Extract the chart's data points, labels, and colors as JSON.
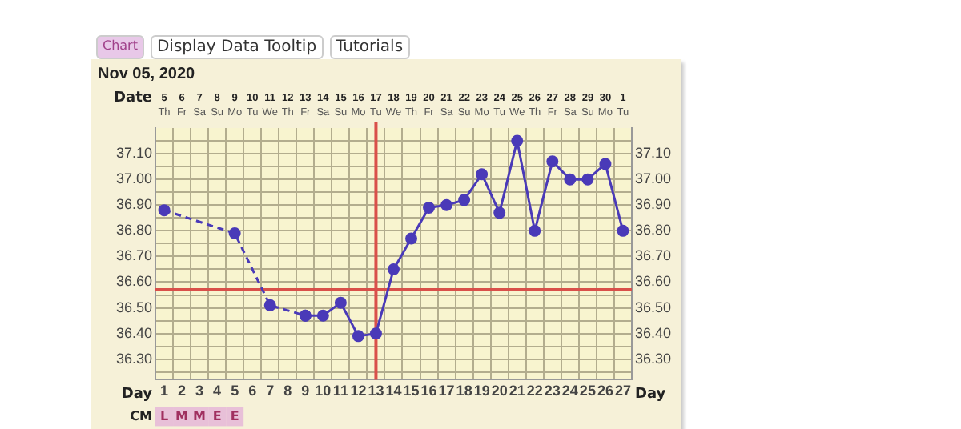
{
  "chart_data": {
    "type": "line",
    "title": "Nov 05, 2020",
    "xlabel": "Day",
    "x2label": "Date",
    "xlim": [
      0.5,
      27.5
    ],
    "ylim": [
      36.22,
      37.2
    ],
    "y2lim": [
      36.22,
      37.2
    ],
    "xticks": [
      {
        "value": 0.5,
        "label": null
      },
      1,
      {
        "value": 1.5,
        "label": null
      },
      2,
      {
        "value": 2.5,
        "label": null
      },
      3,
      {
        "value": 3.5,
        "label": null
      },
      4,
      {
        "value": 4.5,
        "label": null
      },
      5,
      {
        "value": 5.5,
        "label": null
      },
      6,
      {
        "value": 6.5,
        "label": null
      },
      7,
      {
        "value": 7.5,
        "label": null
      },
      8,
      {
        "value": 8.5,
        "label": null
      },
      9,
      {
        "value": 9.5,
        "label": null
      },
      10,
      {
        "value": 10.5,
        "label": null
      },
      11,
      {
        "value": 11.5,
        "label": null
      },
      12,
      {
        "value": 12.5,
        "label": null
      },
      13,
      {
        "value": 13.5,
        "label": null
      },
      14,
      {
        "value": 14.5,
        "label": null
      },
      15,
      {
        "value": 15.5,
        "label": null
      },
      16,
      {
        "value": 16.5,
        "label": null
      },
      17,
      {
        "value": 17.5,
        "label": null
      },
      18,
      {
        "value": 18.5,
        "label": null
      },
      19,
      {
        "value": 19.5,
        "label": null
      },
      20,
      {
        "value": 20.5,
        "label": null
      },
      21,
      {
        "value": 21.5,
        "label": null
      },
      22,
      {
        "value": 22.5,
        "label": null
      },
      23,
      {
        "value": 23.5,
        "label": null
      },
      24,
      {
        "value": 24.5,
        "label": null
      },
      25,
      {
        "value": 25.5,
        "label": null
      },
      26,
      {
        "value": 26.5,
        "label": null
      },
      27,
      {
        "value": 27.5,
        "label": null
      }
    ],
    "yticks": [
      {
        "value": 36.25,
        "label": null
      },
      {
        "value": 36.3,
        "label": "36.30"
      },
      {
        "value": 36.35,
        "label": null
      },
      {
        "value": 36.4,
        "label": "36.40"
      },
      {
        "value": 36.45,
        "label": null
      },
      {
        "value": 36.5,
        "label": "36.50"
      },
      {
        "value": 36.55,
        "label": null
      },
      {
        "value": 36.6,
        "label": "36.60"
      },
      {
        "value": 36.65,
        "label": null
      },
      {
        "value": 36.7,
        "label": "36.70"
      },
      {
        "value": 36.75,
        "label": null
      },
      {
        "value": 36.8,
        "label": "36.80"
      },
      {
        "value": 36.85,
        "label": null
      },
      {
        "value": 36.9,
        "label": "36.90"
      },
      {
        "value": 36.95,
        "label": null
      },
      {
        "value": 37,
        "label": "37.00"
      },
      {
        "value": 37.05,
        "label": null
      },
      {
        "value": 37.1,
        "label": "37.10"
      },
      {
        "value": 37.15,
        "label": null
      }
    ],
    "y2ticks": [
      {
        "value": 36.25,
        "label": null
      },
      {
        "value": 36.3,
        "label": "36.30"
      },
      {
        "value": 36.35,
        "label": null
      },
      {
        "value": 36.4,
        "label": "36.40"
      },
      {
        "value": 36.45,
        "label": null
      },
      {
        "value": 36.5,
        "label": "36.50"
      },
      {
        "value": 36.55,
        "label": null
      },
      {
        "value": 36.6,
        "label": "36.60"
      },
      {
        "value": 36.65,
        "label": null
      },
      {
        "value": 36.7,
        "label": "36.70"
      },
      {
        "value": 36.75,
        "label": null
      },
      {
        "value": 36.8,
        "label": "36.80"
      },
      {
        "value": 36.85,
        "label": null
      },
      {
        "value": 36.9,
        "label": "36.90"
      },
      {
        "value": 36.95,
        "label": null
      },
      {
        "value": 37,
        "label": "37.00"
      },
      {
        "value": 37.05,
        "label": null
      },
      {
        "value": 37.1,
        "label": "37.10"
      },
      {
        "value": 37.15,
        "label": null
      }
    ],
    "series": [
      {
        "color": "#4a3ab8",
        "line_style": "dashed",
        "x": [
          1,
          2,
          3,
          4,
          5,
          6,
          7,
          8,
          9
        ],
        "values": [
          36.88,
          null,
          null,
          null,
          36.79,
          null,
          36.51,
          null,
          36.47
        ]
      },
      {
        "color": "#4a3ab8",
        "line_style": "solid",
        "x": [
          9,
          10,
          11,
          12,
          13,
          14,
          15,
          16,
          17,
          18,
          19,
          20,
          21,
          22,
          23,
          24,
          25,
          26,
          27
        ],
        "values": [
          36.47,
          36.47,
          36.52,
          36.39,
          36.4,
          36.65,
          36.77,
          36.89,
          36.9,
          36.92,
          37.02,
          36.87,
          37.15,
          36.8,
          37.07,
          37,
          37,
          37.06,
          36.8
        ]
      }
    ],
    "ref_lines": [
      {
        "axis": "y",
        "value": 36.57,
        "color": "#d9504a"
      },
      {
        "axis": "x",
        "value": 13,
        "color": "#d9504a"
      }
    ],
    "annotations": [
      "Chart",
      "Display Data Tooltip",
      "Tutorials",
      "5\nTh",
      "6\nFr",
      "7\nSa",
      "8\nSu",
      "9\nMo",
      "10\nTu",
      "11\nWe",
      "12\nTh",
      "13\nFr",
      "14\nSa",
      "15\nSu",
      "16\nMo",
      "17\nTu",
      "18\nWe",
      "19\nTh",
      "20\nFr",
      "21\nSa",
      "22\nSu",
      "23\nMo",
      "24\nTu",
      "25\nWe",
      "26\nTh",
      "27\nFr",
      "28\nSa",
      "29\nSu",
      "30\nMo",
      "1\nTu",
      "CM",
      "L",
      "M",
      "M",
      "E",
      "E"
    ],
    "grid": true,
    "marker": "circle",
    "legend": false
  }
}
